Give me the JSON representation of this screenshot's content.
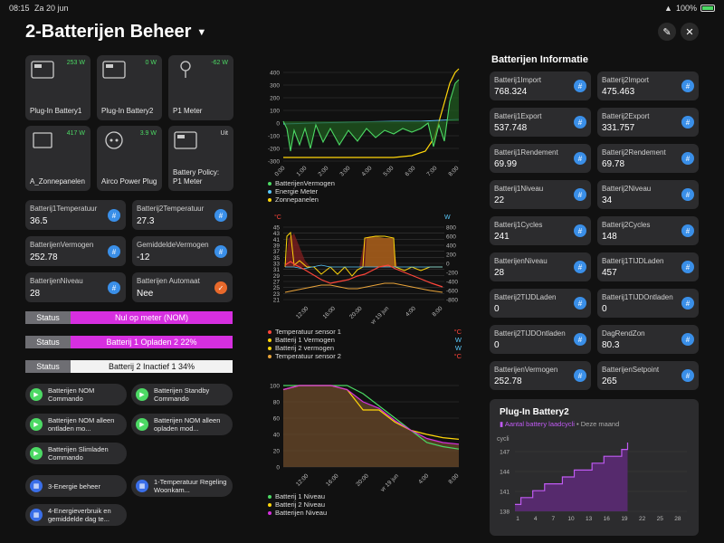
{
  "statusbar": {
    "time": "08:15",
    "date": "Za 20 jun",
    "battery": "100%"
  },
  "header": {
    "title": "2-Batterijen Beheer"
  },
  "tiles": [
    {
      "name": "Plug-In Battery1",
      "value": "253 W"
    },
    {
      "name": "Plug-In Battery2",
      "value": "0 W"
    },
    {
      "name": "P1 Meter",
      "value": "-62 W"
    },
    {
      "name": "A_Zonnepanelen",
      "value": "417 W"
    },
    {
      "name": "Airco Power Plug",
      "value": "3.9 W"
    },
    {
      "name": "Battery Policy: P1 Meter",
      "value": "Uit"
    }
  ],
  "cards": [
    {
      "key": "Batterij1Temperatuur",
      "value": "36.5"
    },
    {
      "key": "Batterij2Temperatuur",
      "value": "27.3"
    },
    {
      "key": "BatterijenVermogen",
      "value": "252.78"
    },
    {
      "key": "GemiddeldeVermogen",
      "value": "-12"
    },
    {
      "key": "BatterijenNiveau",
      "value": "28"
    },
    {
      "key": "Batterijen Automaat",
      "value": "Nee"
    }
  ],
  "status": [
    {
      "label": "Status",
      "value": "Nul op meter (NOM)",
      "color": "#d62fe0"
    },
    {
      "label": "Status",
      "value": "Batterij 1 Opladen 2 22%",
      "color": "#d62fe0"
    },
    {
      "label": "Status",
      "value": "Batterij 2 Inactief 1 34%",
      "color": "#f2f2f2"
    }
  ],
  "commands": [
    {
      "label": "Batterijen NOM Commando"
    },
    {
      "label": "Batterijen Standby Commando"
    },
    {
      "label": "Batterijen NOM alleen ontladen mo..."
    },
    {
      "label": "Batterijen NOM alleen opladen mod..."
    },
    {
      "label": "Batterijen Slimladen Commando"
    }
  ],
  "scenes": [
    {
      "label": "3-Energie beheer"
    },
    {
      "label": "1-Temperatuur Regeling Woonkam..."
    },
    {
      "label": "4-Energieverbruik en gemiddelde dag te..."
    }
  ],
  "chart1": {
    "legend": [
      "BatterijenVermogen",
      "Energie Meter",
      "Zonnepanelen"
    ],
    "colors": [
      "#4cd964",
      "#5ac8fa",
      "#ffd60a"
    ],
    "yticks": [
      "400",
      "300",
      "200",
      "100",
      "0",
      "-100",
      "-200",
      "-300"
    ],
    "xticks": [
      "0:00",
      "1:00",
      "2:00",
      "3:00",
      "4:00",
      "5:00",
      "6:00",
      "7:00",
      "8:00"
    ]
  },
  "chart2": {
    "left_unit": "°C",
    "right_unit": "W",
    "yticks_left": [
      "45",
      "43",
      "41",
      "39",
      "37",
      "35",
      "33",
      "31",
      "29",
      "27",
      "25",
      "23",
      "21"
    ],
    "yticks_right": [
      "800",
      "600",
      "400",
      "200",
      "0",
      "-200",
      "-400",
      "-600",
      "-800"
    ],
    "xticks": [
      "12:00",
      "16:00",
      "20:00",
      "vr 19 jun",
      "4:00",
      "8:00"
    ],
    "legend": [
      {
        "name": "Temperatuur sensor 1",
        "unit": "°C",
        "color": "#ff453a"
      },
      {
        "name": "Batterij 1 Vermogen",
        "unit": "W",
        "color": "#ffd60a"
      },
      {
        "name": "Batterij 2 vermogen",
        "unit": "W",
        "color": "#ffd60a"
      },
      {
        "name": "Temperatuur sensor 2",
        "unit": "°C",
        "color": "#e8a33a"
      }
    ]
  },
  "chart3": {
    "yticks": [
      "100",
      "80",
      "60",
      "40",
      "20",
      "0"
    ],
    "xticks": [
      "12:00",
      "16:00",
      "20:00",
      "vr 19 jun",
      "4:00",
      "8:00"
    ],
    "legend": [
      {
        "name": "Batterij 1 Niveau",
        "color": "#4cd964"
      },
      {
        "name": "Batterij 2 Niveau",
        "color": "#ffd60a"
      },
      {
        "name": "Batterijen Niveau",
        "color": "#d62fe0"
      }
    ]
  },
  "info": {
    "title": "Batterijen Informatie",
    "items": [
      {
        "key": "Batterij1Import",
        "value": "768.324"
      },
      {
        "key": "Batterij2Import",
        "value": "475.463"
      },
      {
        "key": "Batterij1Export",
        "value": "537.748"
      },
      {
        "key": "Batterij2Export",
        "value": "331.757"
      },
      {
        "key": "Batterij1Rendement",
        "value": "69.99"
      },
      {
        "key": "Batterij2Rendement",
        "value": "69.78"
      },
      {
        "key": "Batterij1Niveau",
        "value": "22"
      },
      {
        "key": "Batterij2Niveau",
        "value": "34"
      },
      {
        "key": "Batterij1Cycles",
        "value": "241"
      },
      {
        "key": "Batterij2Cycles",
        "value": "148"
      },
      {
        "key": "BatterijenNiveau",
        "value": "28"
      },
      {
        "key": "Batterij1TIJDLaden",
        "value": "457"
      },
      {
        "key": "Batterij2TIJDLaden",
        "value": "0"
      },
      {
        "key": "Batterij1TIJDOntladen",
        "value": "0"
      },
      {
        "key": "Batterij2TIJDOntladen",
        "value": "0"
      },
      {
        "key": "DagRendZon",
        "value": "80.3"
      },
      {
        "key": "BatterijenVermogen",
        "value": "252.78"
      },
      {
        "key": "BatterijenSetpoint",
        "value": "265"
      }
    ]
  },
  "plugin2": {
    "title": "Plug-In Battery2",
    "series": "Aantal battery laadcycli",
    "period": "• Deze maand",
    "ylabel": "cycli",
    "yticks": [
      "147",
      "144",
      "141",
      "138"
    ],
    "xticks": [
      "1",
      "4",
      "7",
      "10",
      "13",
      "16",
      "19",
      "22",
      "25",
      "28"
    ]
  },
  "chart_data": [
    {
      "type": "line",
      "series": [
        {
          "name": "BatterijenVermogen",
          "color": "#4cd964"
        },
        {
          "name": "Energie Meter",
          "color": "#5ac8fa"
        },
        {
          "name": "Zonnepanelen",
          "color": "#ffd60a"
        }
      ],
      "ylim": [
        -300,
        400
      ],
      "xticks": [
        "0:00",
        "1:00",
        "2:00",
        "3:00",
        "4:00",
        "5:00",
        "6:00",
        "7:00",
        "8:00"
      ]
    },
    {
      "type": "line",
      "series": [
        {
          "name": "Batterij 1 Niveau",
          "x": [
            0,
            1,
            2,
            3,
            4,
            5,
            6,
            7,
            8,
            9,
            10,
            11
          ],
          "values": [
            100,
            100,
            100,
            100,
            100,
            90,
            75,
            60,
            45,
            30,
            25,
            22
          ]
        },
        {
          "name": "Batterij 2 Niveau",
          "x": [
            0,
            1,
            2,
            3,
            4,
            5,
            6,
            7,
            8,
            9,
            10,
            11
          ],
          "values": [
            95,
            100,
            100,
            100,
            95,
            70,
            70,
            55,
            45,
            40,
            36,
            34
          ]
        },
        {
          "name": "Batterijen Niveau",
          "x": [
            0,
            1,
            2,
            3,
            4,
            5,
            6,
            7,
            8,
            9,
            10,
            11
          ],
          "values": [
            95,
            100,
            100,
            100,
            95,
            80,
            72,
            57,
            45,
            35,
            30,
            28
          ]
        }
      ],
      "ylim": [
        0,
        100
      ]
    },
    {
      "type": "bar",
      "title": "Plug-In Battery2",
      "ylabel": "cycli",
      "ylim": [
        138,
        148
      ],
      "categories": [
        1,
        2,
        3,
        4,
        5,
        6,
        7,
        8,
        9,
        10,
        11,
        12,
        13,
        14,
        15,
        16,
        17,
        18,
        19,
        20
      ],
      "values": [
        139,
        140,
        140,
        141,
        141,
        142,
        142,
        142,
        143,
        143,
        144,
        144,
        144,
        145,
        145,
        146,
        146,
        146,
        147,
        148
      ]
    }
  ]
}
